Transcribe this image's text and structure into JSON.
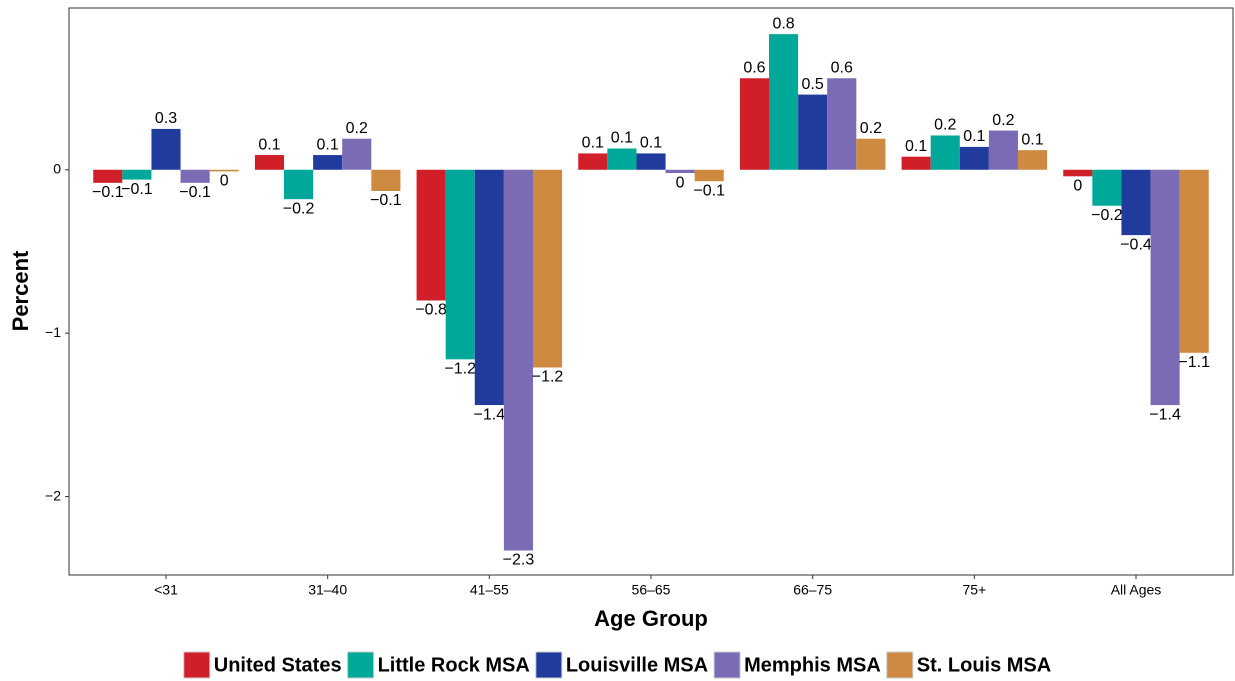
{
  "chart_data": {
    "type": "bar",
    "x_label": "Age Group",
    "y_label": "Percent",
    "categories": [
      "<31",
      "31–40",
      "41–55",
      "56–65",
      "66–75",
      "75+",
      "All Ages"
    ],
    "ylim": [
      -2.48,
      0.99
    ],
    "yticks": [
      {
        "value": -2,
        "label": "−2"
      },
      {
        "value": -1,
        "label": "−1"
      },
      0
    ],
    "series": [
      {
        "name": "United States",
        "color": "#d11f2a",
        "values": [
          -0.08,
          0.09,
          -0.8,
          0.1,
          0.56,
          0.08,
          -0.04
        ],
        "value_labels": [
          "−0.1",
          "0.1",
          "−0.8",
          "0.1",
          "0.6",
          "0.1",
          "0"
        ]
      },
      {
        "name": "Little Rock MSA",
        "color": "#00a89a",
        "values": [
          -0.06,
          -0.18,
          -1.16,
          0.13,
          0.83,
          0.21,
          -0.22
        ],
        "value_labels": [
          "−0.1",
          "−0.2",
          "−1.2",
          "0.1",
          "0.8",
          "0.2",
          "−0.2"
        ]
      },
      {
        "name": "Louisville MSA",
        "color": "#203b9c",
        "values": [
          0.25,
          0.09,
          -1.44,
          0.1,
          0.46,
          0.14,
          -0.4
        ],
        "value_labels": [
          "0.3",
          "0.1",
          "−1.4",
          "0.1",
          "0.5",
          "0.1",
          "−0.4"
        ]
      },
      {
        "name": "Memphis MSA",
        "color": "#7b6bb5",
        "values": [
          -0.08,
          0.19,
          -2.33,
          -0.02,
          0.56,
          0.24,
          -1.44
        ],
        "value_labels": [
          "−0.1",
          "0.2",
          "−2.3",
          "0",
          "0.6",
          "0.2",
          "−1.4"
        ]
      },
      {
        "name": "St. Louis MSA",
        "color": "#cd8a40",
        "values": [
          -0.01,
          -0.13,
          -1.21,
          -0.07,
          0.19,
          0.12,
          -1.12
        ],
        "value_labels": [
          "0",
          "−0.1",
          "−1.2",
          "−0.1",
          "0.2",
          "0.1",
          "−1.1"
        ]
      }
    ]
  }
}
